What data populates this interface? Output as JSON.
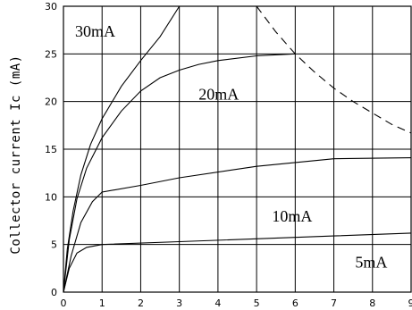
{
  "chart_data": {
    "type": "line",
    "title": "",
    "xlabel": "",
    "ylabel": "Collector current Ic (mA)",
    "xlim": [
      0,
      9
    ],
    "ylim": [
      0,
      30
    ],
    "x_ticks": [
      "0",
      "1",
      "2",
      "3",
      "4",
      "5",
      "6",
      "7",
      "8",
      "9"
    ],
    "y_ticks": [
      "0",
      "5",
      "10",
      "15",
      "20",
      "25",
      "30"
    ],
    "grid": true,
    "series": [
      {
        "name": "5mA",
        "label_at": [
          7.55,
          2.6
        ],
        "points": [
          [
            0,
            0
          ],
          [
            0.15,
            2.5
          ],
          [
            0.35,
            4.1
          ],
          [
            0.6,
            4.7
          ],
          [
            1,
            5.0
          ],
          [
            3,
            5.3
          ],
          [
            5,
            5.6
          ],
          [
            7,
            5.9
          ],
          [
            9,
            6.2
          ]
        ]
      },
      {
        "name": "10mA",
        "label_at": [
          5.4,
          7.4
        ],
        "points": [
          [
            0,
            0
          ],
          [
            0.2,
            3.8
          ],
          [
            0.45,
            7.3
          ],
          [
            0.75,
            9.5
          ],
          [
            1,
            10.5
          ],
          [
            2,
            11.2
          ],
          [
            3,
            12.0
          ],
          [
            5,
            13.2
          ],
          [
            7,
            14.0
          ],
          [
            9,
            14.1
          ]
        ]
      },
      {
        "name": "20mA",
        "label_at": [
          3.5,
          20.2
        ],
        "points": [
          [
            0,
            0
          ],
          [
            0.15,
            5.5
          ],
          [
            0.35,
            9.8
          ],
          [
            0.6,
            13.0
          ],
          [
            1,
            16.2
          ],
          [
            1.5,
            19.0
          ],
          [
            2,
            21.1
          ],
          [
            2.5,
            22.5
          ],
          [
            3,
            23.3
          ],
          [
            3.5,
            23.9
          ],
          [
            4,
            24.3
          ],
          [
            5,
            24.8
          ],
          [
            6,
            25.0
          ]
        ]
      },
      {
        "name": "30mA",
        "label_at": [
          0.3,
          26.8
        ],
        "points": [
          [
            0,
            0
          ],
          [
            0.1,
            4.5
          ],
          [
            0.25,
            8.5
          ],
          [
            0.45,
            12.3
          ],
          [
            0.7,
            15.5
          ],
          [
            1,
            18.2
          ],
          [
            1.5,
            21.6
          ],
          [
            2,
            24.3
          ],
          [
            2.5,
            26.8
          ],
          [
            3,
            30
          ]
        ]
      }
    ],
    "limit_curve": {
      "style": "dashed",
      "points": [
        [
          5,
          30
        ],
        [
          5.5,
          27.3
        ],
        [
          6,
          25.0
        ],
        [
          6.5,
          23.1
        ],
        [
          7,
          21.4
        ],
        [
          7.5,
          20.0
        ],
        [
          8,
          18.8
        ],
        [
          8.5,
          17.6
        ],
        [
          9,
          16.7
        ]
      ]
    }
  }
}
